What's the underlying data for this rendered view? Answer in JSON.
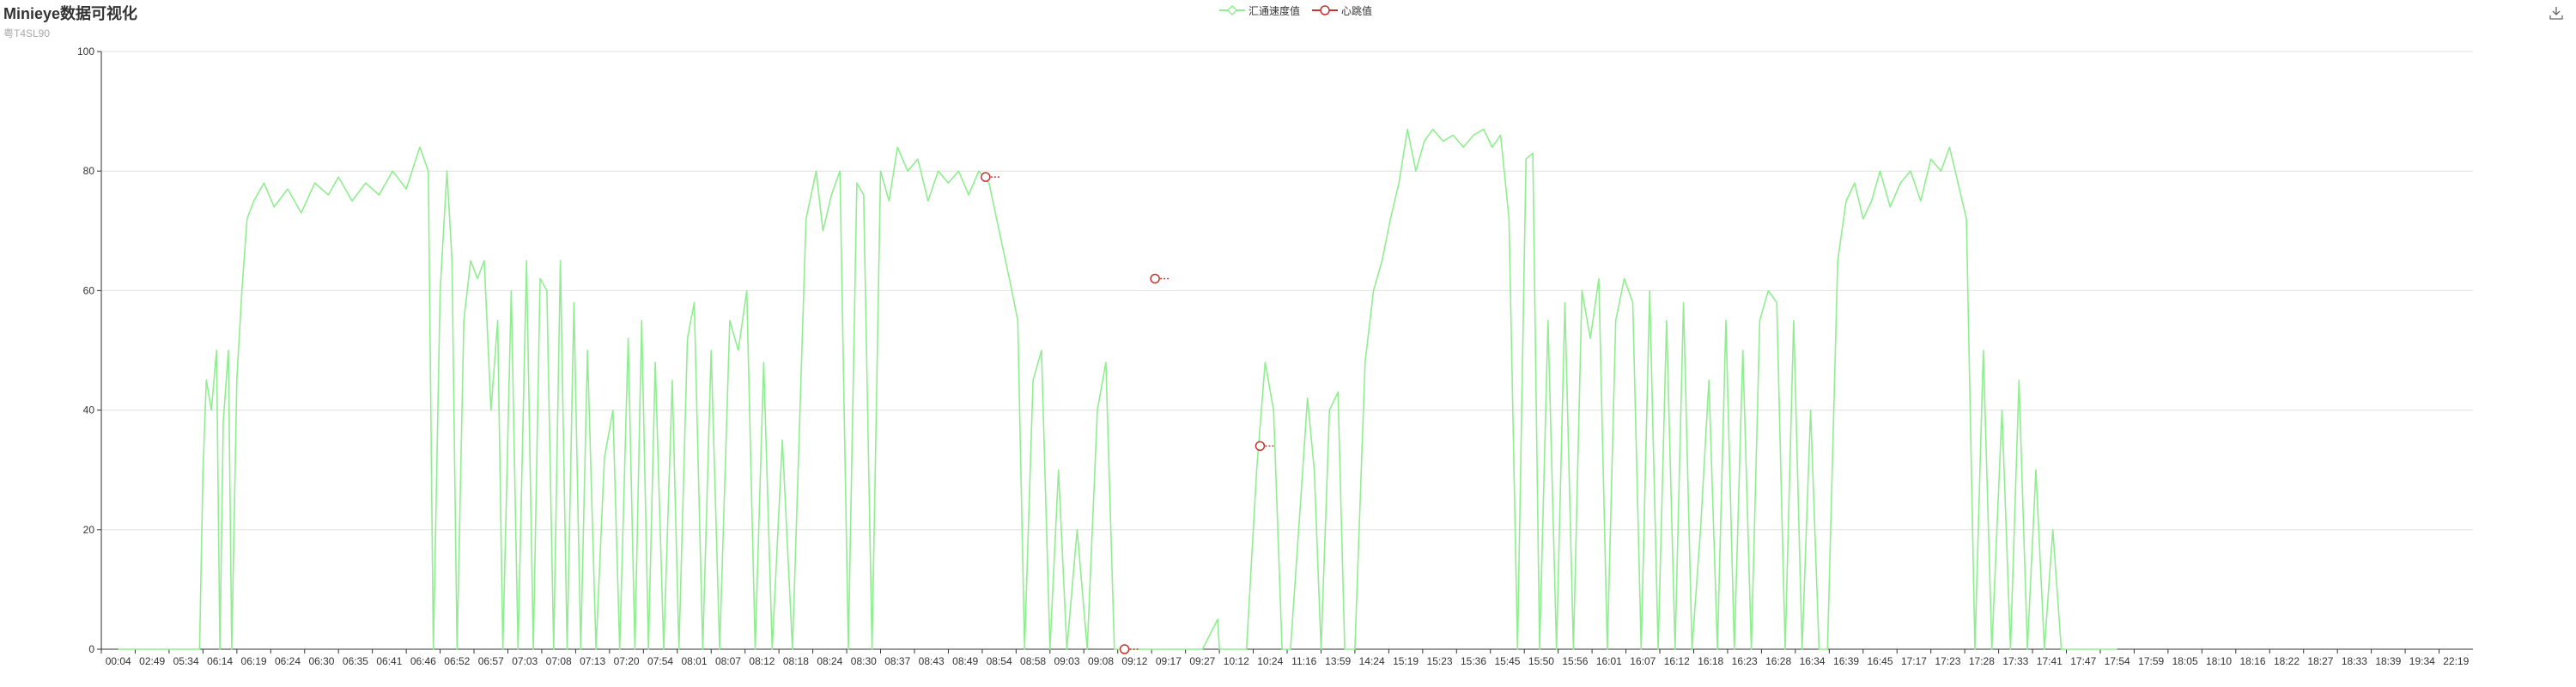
{
  "header": {
    "title": "Minieye数据可视化",
    "subtitle": "粤T4SL90"
  },
  "toolbox": {
    "icon": "save-as-image-icon"
  },
  "chart_data": {
    "type": "line",
    "title": "Minieye数据可视化",
    "subtitle": "粤T4SL90",
    "legend_position": "top-center",
    "grid": true,
    "ylim": [
      0,
      100
    ],
    "y_ticks": [
      0,
      20,
      40,
      60,
      80,
      100
    ],
    "x_tick_labels": [
      "00:04",
      "02:49",
      "05:34",
      "06:14",
      "06:19",
      "06:24",
      "06:30",
      "06:35",
      "06:41",
      "06:46",
      "06:52",
      "06:57",
      "07:03",
      "07:08",
      "07:13",
      "07:20",
      "07:54",
      "08:01",
      "08:07",
      "08:12",
      "08:18",
      "08:24",
      "08:30",
      "08:37",
      "08:43",
      "08:49",
      "08:54",
      "08:58",
      "09:03",
      "09:08",
      "09:12",
      "09:17",
      "09:27",
      "10:12",
      "10:24",
      "11:16",
      "13:59",
      "14:24",
      "15:19",
      "15:23",
      "15:36",
      "15:45",
      "15:50",
      "15:56",
      "16:01",
      "16:07",
      "16:12",
      "16:18",
      "16:23",
      "16:28",
      "16:34",
      "16:39",
      "16:45",
      "17:17",
      "17:23",
      "17:28",
      "17:33",
      "17:41",
      "17:47",
      "17:54",
      "17:59",
      "18:05",
      "18:10",
      "18:16",
      "18:22",
      "18:27",
      "18:33",
      "18:39",
      "19:34",
      "22:19"
    ],
    "series": [
      {
        "name": "汇通速度值",
        "color": "#90ee90",
        "points": [
          [
            0,
            0
          ],
          [
            2.4,
            0
          ],
          [
            2.5,
            30
          ],
          [
            2.6,
            45
          ],
          [
            2.75,
            40
          ],
          [
            2.9,
            50
          ],
          [
            3.0,
            0
          ],
          [
            3.1,
            38
          ],
          [
            3.25,
            50
          ],
          [
            3.35,
            0
          ],
          [
            3.5,
            45
          ],
          [
            3.65,
            60
          ],
          [
            3.8,
            72
          ],
          [
            4.0,
            75
          ],
          [
            4.3,
            78
          ],
          [
            4.6,
            74
          ],
          [
            5.0,
            77
          ],
          [
            5.4,
            73
          ],
          [
            5.8,
            78
          ],
          [
            6.2,
            76
          ],
          [
            6.5,
            79
          ],
          [
            6.9,
            75
          ],
          [
            7.3,
            78
          ],
          [
            7.7,
            76
          ],
          [
            8.1,
            80
          ],
          [
            8.5,
            77
          ],
          [
            8.9,
            84
          ],
          [
            9.15,
            80
          ],
          [
            9.3,
            0
          ],
          [
            9.5,
            60
          ],
          [
            9.7,
            80
          ],
          [
            9.85,
            65
          ],
          [
            10.0,
            0
          ],
          [
            10.2,
            55
          ],
          [
            10.4,
            65
          ],
          [
            10.6,
            62
          ],
          [
            10.8,
            65
          ],
          [
            11.0,
            40
          ],
          [
            11.2,
            55
          ],
          [
            11.35,
            0
          ],
          [
            11.6,
            60
          ],
          [
            11.8,
            0
          ],
          [
            12.05,
            65
          ],
          [
            12.25,
            0
          ],
          [
            12.45,
            62
          ],
          [
            12.65,
            60
          ],
          [
            12.85,
            0
          ],
          [
            13.05,
            65
          ],
          [
            13.25,
            0
          ],
          [
            13.45,
            58
          ],
          [
            13.65,
            0
          ],
          [
            13.85,
            50
          ],
          [
            14.1,
            0
          ],
          [
            14.35,
            32
          ],
          [
            14.6,
            40
          ],
          [
            14.8,
            0
          ],
          [
            15.05,
            52
          ],
          [
            15.25,
            0
          ],
          [
            15.45,
            55
          ],
          [
            15.65,
            0
          ],
          [
            15.85,
            48
          ],
          [
            16.1,
            0
          ],
          [
            16.35,
            45
          ],
          [
            16.55,
            0
          ],
          [
            16.8,
            52
          ],
          [
            17.0,
            58
          ],
          [
            17.25,
            0
          ],
          [
            17.5,
            50
          ],
          [
            17.75,
            0
          ],
          [
            18.05,
            55
          ],
          [
            18.3,
            50
          ],
          [
            18.55,
            60
          ],
          [
            18.8,
            0
          ],
          [
            19.05,
            48
          ],
          [
            19.3,
            0
          ],
          [
            19.6,
            35
          ],
          [
            19.9,
            0
          ],
          [
            20.3,
            72
          ],
          [
            20.6,
            80
          ],
          [
            20.8,
            70
          ],
          [
            21.05,
            76
          ],
          [
            21.3,
            80
          ],
          [
            21.55,
            0
          ],
          [
            21.8,
            78
          ],
          [
            22.0,
            76
          ],
          [
            22.25,
            0
          ],
          [
            22.5,
            80
          ],
          [
            22.75,
            75
          ],
          [
            23.0,
            84
          ],
          [
            23.3,
            80
          ],
          [
            23.6,
            82
          ],
          [
            23.9,
            75
          ],
          [
            24.2,
            80
          ],
          [
            24.5,
            78
          ],
          [
            24.8,
            80
          ],
          [
            25.1,
            76
          ],
          [
            25.4,
            80
          ],
          [
            25.7,
            78
          ],
          [
            26.0,
            70
          ],
          [
            26.3,
            62
          ],
          [
            26.55,
            55
          ],
          [
            26.75,
            0
          ],
          [
            27.0,
            45
          ],
          [
            27.25,
            50
          ],
          [
            27.5,
            0
          ],
          [
            27.75,
            30
          ],
          [
            28.0,
            0
          ],
          [
            28.3,
            20
          ],
          [
            28.6,
            0
          ],
          [
            28.9,
            40
          ],
          [
            29.15,
            48
          ],
          [
            29.4,
            0
          ],
          [
            30.5,
            0
          ],
          [
            31.0,
            0
          ],
          [
            31.6,
            0
          ],
          [
            32.0,
            0
          ],
          [
            32.45,
            5
          ],
          [
            32.5,
            0
          ],
          [
            33.3,
            0
          ],
          [
            33.6,
            30
          ],
          [
            33.85,
            48
          ],
          [
            34.1,
            40
          ],
          [
            34.35,
            0
          ],
          [
            34.6,
            0
          ],
          [
            34.9,
            25
          ],
          [
            35.1,
            42
          ],
          [
            35.3,
            30
          ],
          [
            35.5,
            0
          ],
          [
            35.75,
            40
          ],
          [
            36.0,
            43
          ],
          [
            36.2,
            0
          ],
          [
            36.5,
            0
          ],
          [
            36.8,
            48
          ],
          [
            37.05,
            60
          ],
          [
            37.3,
            65
          ],
          [
            37.55,
            72
          ],
          [
            37.8,
            78
          ],
          [
            38.05,
            87
          ],
          [
            38.3,
            80
          ],
          [
            38.55,
            85
          ],
          [
            38.8,
            87
          ],
          [
            39.1,
            85
          ],
          [
            39.4,
            86
          ],
          [
            39.7,
            84
          ],
          [
            40.0,
            86
          ],
          [
            40.3,
            87
          ],
          [
            40.55,
            84
          ],
          [
            40.8,
            86
          ],
          [
            41.05,
            72
          ],
          [
            41.3,
            0
          ],
          [
            41.55,
            82
          ],
          [
            41.75,
            83
          ],
          [
            41.95,
            0
          ],
          [
            42.2,
            55
          ],
          [
            42.45,
            0
          ],
          [
            42.7,
            58
          ],
          [
            42.95,
            0
          ],
          [
            43.2,
            60
          ],
          [
            43.45,
            52
          ],
          [
            43.7,
            62
          ],
          [
            43.95,
            0
          ],
          [
            44.2,
            55
          ],
          [
            44.45,
            62
          ],
          [
            44.7,
            58
          ],
          [
            44.95,
            0
          ],
          [
            45.2,
            60
          ],
          [
            45.45,
            0
          ],
          [
            45.7,
            55
          ],
          [
            45.95,
            0
          ],
          [
            46.2,
            58
          ],
          [
            46.45,
            0
          ],
          [
            46.7,
            20
          ],
          [
            46.95,
            45
          ],
          [
            47.2,
            0
          ],
          [
            47.45,
            55
          ],
          [
            47.7,
            0
          ],
          [
            47.95,
            50
          ],
          [
            48.2,
            0
          ],
          [
            48.45,
            55
          ],
          [
            48.7,
            60
          ],
          [
            48.95,
            58
          ],
          [
            49.2,
            0
          ],
          [
            49.45,
            55
          ],
          [
            49.7,
            0
          ],
          [
            49.95,
            40
          ],
          [
            50.2,
            0
          ],
          [
            50.45,
            0
          ],
          [
            50.75,
            65
          ],
          [
            51.0,
            75
          ],
          [
            51.25,
            78
          ],
          [
            51.5,
            72
          ],
          [
            51.75,
            75
          ],
          [
            52.0,
            80
          ],
          [
            52.3,
            74
          ],
          [
            52.6,
            78
          ],
          [
            52.9,
            80
          ],
          [
            53.2,
            75
          ],
          [
            53.5,
            82
          ],
          [
            53.8,
            80
          ],
          [
            54.05,
            84
          ],
          [
            54.3,
            78
          ],
          [
            54.55,
            72
          ],
          [
            54.8,
            0
          ],
          [
            55.05,
            50
          ],
          [
            55.3,
            0
          ],
          [
            55.6,
            40
          ],
          [
            55.85,
            0
          ],
          [
            56.1,
            45
          ],
          [
            56.35,
            0
          ],
          [
            56.6,
            30
          ],
          [
            56.85,
            0
          ],
          [
            57.1,
            20
          ],
          [
            57.35,
            0
          ],
          [
            57.6,
            0
          ],
          [
            58.0,
            0
          ],
          [
            58.5,
            0
          ],
          [
            59.0,
            0
          ]
        ]
      },
      {
        "name": "心跳值",
        "color": "#c23531",
        "points": [
          [
            25.6,
            79
          ],
          [
            29.7,
            0
          ],
          [
            30.6,
            62
          ],
          [
            33.7,
            34
          ]
        ]
      }
    ]
  }
}
